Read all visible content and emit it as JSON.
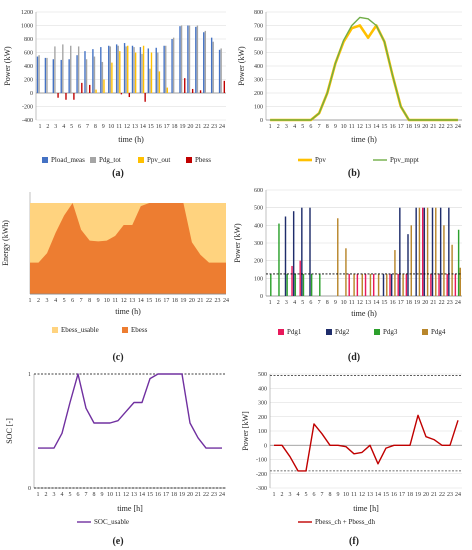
{
  "captions": [
    "(a)",
    "(b)",
    "(c)",
    "(d)",
    "(e)",
    "(f)"
  ],
  "chart_data": [
    {
      "id": "a",
      "type": "bar",
      "xlabel": "time (h)",
      "ylabel": "Power (kW)",
      "ylim": [
        -400,
        1200
      ],
      "yticks": [
        -400,
        -200,
        0,
        200,
        400,
        600,
        800,
        1000,
        1200
      ],
      "categories": [
        "1",
        "2",
        "3",
        "4",
        "5",
        "6",
        "7",
        "8",
        "9",
        "10",
        "11",
        "12",
        "13",
        "14",
        "15",
        "16",
        "17",
        "18",
        "19",
        "20",
        "21",
        "22",
        "23",
        "24"
      ],
      "legend_position": "bottom",
      "series": [
        {
          "name": "Pload_meas",
          "color": "#4472c4",
          "values": [
            540,
            520,
            500,
            490,
            500,
            560,
            620,
            650,
            680,
            700,
            720,
            740,
            700,
            680,
            660,
            670,
            700,
            800,
            990,
            1000,
            980,
            900,
            820,
            640
          ]
        },
        {
          "name": "Pdg_tot",
          "color": "#a5a5a5",
          "values": [
            560,
            520,
            690,
            720,
            700,
            690,
            500,
            540,
            460,
            690,
            700,
            690,
            680,
            580,
            360,
            600,
            700,
            820,
            1000,
            1000,
            1000,
            920,
            760,
            660
          ]
        },
        {
          "name": "Ppv_out",
          "color": "#ffc000",
          "values": [
            0,
            0,
            0,
            0,
            0,
            0,
            0,
            50,
            200,
            450,
            620,
            700,
            600,
            700,
            600,
            320,
            80,
            0,
            0,
            0,
            0,
            0,
            0,
            0
          ]
        },
        {
          "name": "Pbess",
          "color": "#c00000",
          "values": [
            0,
            0,
            -70,
            -100,
            -100,
            150,
            120,
            0,
            0,
            0,
            -20,
            -60,
            0,
            -130,
            0,
            0,
            0,
            0,
            220,
            60,
            40,
            0,
            0,
            180
          ]
        }
      ]
    },
    {
      "id": "b",
      "type": "line",
      "xlabel": "time (h)",
      "ylabel": "Power (kW)",
      "ylim": [
        0,
        800
      ],
      "yticks": [
        0,
        100,
        200,
        300,
        400,
        500,
        600,
        700,
        800
      ],
      "x": [
        "1",
        "2",
        "3",
        "4",
        "5",
        "6",
        "7",
        "8",
        "9",
        "10",
        "11",
        "12",
        "13",
        "14",
        "15",
        "16",
        "17",
        "18",
        "19",
        "20",
        "21",
        "22",
        "23",
        "24"
      ],
      "legend_position": "bottom",
      "series": [
        {
          "name": "Ppv",
          "color": "#ffc000",
          "values": [
            0,
            0,
            0,
            0,
            0,
            0,
            50,
            200,
            420,
            580,
            680,
            700,
            610,
            700,
            580,
            330,
            100,
            0,
            0,
            0,
            0,
            0,
            0,
            0
          ]
        },
        {
          "name": "Ppv_mppt",
          "color": "#70ad47",
          "values": [
            0,
            0,
            0,
            0,
            0,
            0,
            50,
            200,
            420,
            590,
            700,
            760,
            750,
            700,
            580,
            330,
            100,
            0,
            0,
            0,
            0,
            0,
            0,
            0
          ]
        }
      ]
    },
    {
      "id": "c",
      "type": "area",
      "xlabel": "time (h)",
      "ylabel": "Energy (kWh)",
      "x": [
        "1",
        "2",
        "3",
        "4",
        "5",
        "6",
        "7",
        "8",
        "9",
        "10",
        "11",
        "12",
        "13",
        "14",
        "15",
        "16",
        "17",
        "18",
        "19",
        "20",
        "21",
        "22",
        "23",
        "24"
      ],
      "legend_position": "bottom",
      "series": [
        {
          "name": "Ebess_usable",
          "color": "#ffd37f",
          "values": [
            580,
            580,
            580,
            580,
            580,
            580,
            580,
            580,
            580,
            580,
            580,
            580,
            580,
            580,
            580,
            580,
            580,
            580,
            580,
            580,
            580,
            580,
            580,
            580
          ]
        },
        {
          "name": "Ebess",
          "color": "#ed7d31",
          "values": [
            200,
            200,
            260,
            390,
            500,
            580,
            410,
            340,
            335,
            340,
            370,
            440,
            440,
            560,
            580,
            580,
            580,
            580,
            580,
            330,
            250,
            200,
            200,
            200
          ]
        }
      ]
    },
    {
      "id": "d",
      "type": "bar",
      "xlabel": "time (h)",
      "ylabel": "Power (kW)",
      "ylim": [
        0,
        600
      ],
      "yticks": [
        0,
        100,
        200,
        300,
        400,
        500,
        600
      ],
      "categories": [
        "1",
        "2",
        "3",
        "4",
        "5",
        "6",
        "7",
        "8",
        "9",
        "10",
        "11",
        "12",
        "13",
        "14",
        "15",
        "16",
        "17",
        "18",
        "19",
        "20",
        "21",
        "22",
        "23",
        "24"
      ],
      "reference_line": 125,
      "legend_position": "bottom",
      "series": [
        {
          "name": "Pdg1",
          "color": "#e8195b",
          "values": [
            0,
            0,
            0,
            170,
            200,
            0,
            0,
            0,
            0,
            0,
            125,
            125,
            125,
            125,
            0,
            125,
            125,
            125,
            0,
            500,
            125,
            125,
            125,
            125
          ]
        },
        {
          "name": "Pdg2",
          "color": "#1f2d6b",
          "values": [
            0,
            0,
            450,
            480,
            500,
            500,
            0,
            0,
            0,
            0,
            0,
            0,
            0,
            0,
            125,
            125,
            500,
            350,
            500,
            500,
            500,
            500,
            500,
            0
          ]
        },
        {
          "name": "Pdg3",
          "color": "#2ca02c",
          "values": [
            125,
            410,
            125,
            125,
            125,
            125,
            125,
            0,
            0,
            0,
            0,
            0,
            0,
            0,
            0,
            0,
            0,
            0,
            0,
            0,
            0,
            0,
            0,
            375
          ]
        },
        {
          "name": "Pdg4",
          "color": "#b8862b",
          "values": [
            0,
            0,
            0,
            0,
            0,
            0,
            0,
            0,
            440,
            270,
            125,
            125,
            125,
            125,
            125,
            260,
            125,
            400,
            500,
            500,
            500,
            400,
            290,
            160
          ]
        }
      ]
    },
    {
      "id": "e",
      "type": "line",
      "xlabel": "time [h]",
      "ylabel": "SOC [-]",
      "ylim": [
        0,
        1
      ],
      "yticks": [
        0,
        0.1,
        0.2,
        0.3,
        0.4,
        0.5,
        0.6,
        0.7,
        0.8,
        0.9,
        1
      ],
      "ytick_labels": [
        "0",
        "",
        "",
        "",
        "",
        "",
        "",
        "",
        "",
        "",
        "1"
      ],
      "x": [
        "1",
        "2",
        "3",
        "4",
        "5",
        "6",
        "7",
        "8",
        "9",
        "10",
        "11",
        "12",
        "13",
        "14",
        "15",
        "16",
        "17",
        "18",
        "19",
        "20",
        "21",
        "22",
        "23",
        "24"
      ],
      "legend_position": "bottom",
      "series": [
        {
          "name": "SOC_usable",
          "color": "#7030a0",
          "values": [
            0.35,
            0.35,
            0.35,
            0.48,
            0.75,
            1.0,
            0.7,
            0.57,
            0.57,
            0.57,
            0.59,
            0.67,
            0.75,
            0.75,
            0.96,
            1.0,
            1.0,
            1.0,
            1.0,
            0.57,
            0.44,
            0.35,
            0.35,
            0.35
          ]
        }
      ]
    },
    {
      "id": "f",
      "type": "line",
      "xlabel": "time [h]",
      "ylabel": "Power [kW]",
      "ylim": [
        -300,
        500
      ],
      "yticks": [
        -300,
        -200,
        -100,
        0,
        100,
        200,
        300,
        400,
        500
      ],
      "x": [
        "1",
        "2",
        "3",
        "4",
        "5",
        "6",
        "7",
        "8",
        "9",
        "10",
        "11",
        "12",
        "13",
        "14",
        "15",
        "16",
        "17",
        "18",
        "19",
        "20",
        "21",
        "22",
        "23",
        "24"
      ],
      "reference_lines": [
        -180,
        490
      ],
      "legend_position": "bottom",
      "series": [
        {
          "name": "Pbess_ch + Pbess_dh",
          "color": "#c00000",
          "values": [
            0,
            0,
            -80,
            -180,
            -180,
            150,
            80,
            0,
            0,
            -10,
            -60,
            -50,
            0,
            -130,
            -20,
            0,
            0,
            0,
            210,
            60,
            40,
            0,
            0,
            175
          ]
        }
      ]
    }
  ]
}
